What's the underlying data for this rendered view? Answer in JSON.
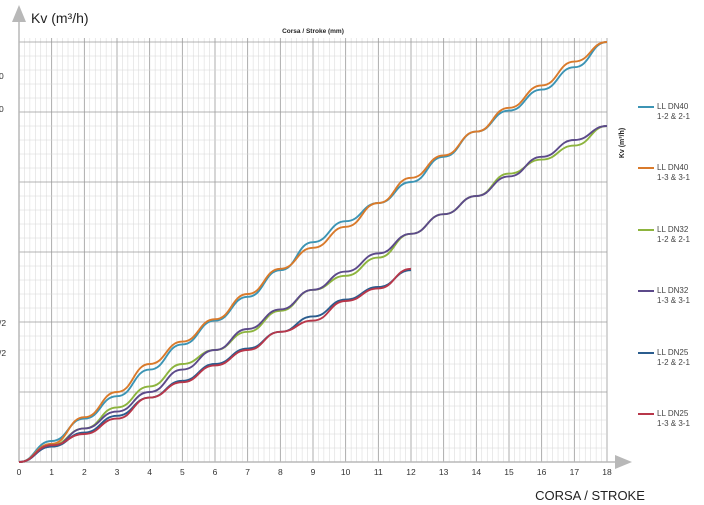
{
  "chart_data": {
    "type": "line",
    "title": "Corsa / Stroke (mm)",
    "xlabel": "CORSA / STROKE",
    "ylabel": "Kv (m³/h)",
    "right_ylabel": "Kv (m³/h)",
    "xlim": [
      0,
      18
    ],
    "ylim": [
      0,
      30
    ],
    "x_ticks": [
      0,
      1,
      2,
      3,
      4,
      5,
      6,
      7,
      8,
      9,
      10,
      11,
      12,
      13,
      14,
      15,
      16,
      17,
      18
    ],
    "y_left_fragments": [
      "0",
      "0",
      "/2",
      "/2"
    ],
    "grid": true,
    "legend_position": "right",
    "series": [
      {
        "name": "LL DN40\n1-2 & 2-1",
        "color": "#3c94b4",
        "x": [
          0,
          1,
          2,
          3,
          4,
          5,
          6,
          7,
          8,
          9,
          10,
          11,
          12,
          13,
          14,
          15,
          16,
          17,
          18
        ],
        "y": [
          0,
          1.5,
          3.1,
          4.7,
          6.6,
          8.4,
          10.1,
          11.8,
          13.7,
          15.7,
          17.2,
          18.5,
          20.0,
          21.8,
          23.6,
          25.1,
          26.6,
          28.2,
          30.0
        ]
      },
      {
        "name": "LL DN40\n1-3 & 3-1",
        "color": "#d97a2b",
        "x": [
          0,
          1,
          2,
          3,
          4,
          5,
          6,
          7,
          8,
          9,
          10,
          11,
          12,
          13,
          14,
          15,
          16,
          17,
          18
        ],
        "y": [
          0,
          1.3,
          3.2,
          5.0,
          7.0,
          8.6,
          10.2,
          12.0,
          13.8,
          15.3,
          16.8,
          18.5,
          20.3,
          21.9,
          23.6,
          25.3,
          26.9,
          28.6,
          30.0
        ]
      },
      {
        "name": "LL DN32\n1-2 & 2-1",
        "color": "#8db43e",
        "x": [
          0,
          1,
          2,
          3,
          4,
          5,
          6,
          7,
          8,
          9,
          10,
          11,
          12,
          13,
          14,
          15,
          16,
          17,
          18
        ],
        "y": [
          0,
          1.2,
          2.4,
          3.9,
          5.4,
          7.0,
          8.0,
          9.3,
          10.8,
          12.3,
          13.3,
          14.6,
          16.3,
          17.7,
          19.0,
          20.6,
          21.6,
          22.6,
          24.0
        ]
      },
      {
        "name": "LL DN32\n1-3 & 3-1",
        "color": "#5c4a8a",
        "x": [
          0,
          1,
          2,
          3,
          4,
          5,
          6,
          7,
          8,
          9,
          10,
          11,
          12,
          13,
          14,
          15,
          16,
          17,
          18
        ],
        "y": [
          0,
          1.1,
          2.4,
          3.6,
          5.0,
          6.6,
          8.0,
          9.5,
          10.9,
          12.3,
          13.6,
          14.9,
          16.3,
          17.7,
          19.0,
          20.4,
          21.8,
          23.0,
          24.0
        ]
      },
      {
        "name": "LL DN25\n1-2 & 2-1",
        "color": "#2b5d8e",
        "x": [
          0,
          1,
          2,
          3,
          4,
          5,
          6,
          7,
          8,
          9,
          10,
          11,
          12
        ],
        "y": [
          0,
          1.1,
          2.1,
          3.3,
          4.6,
          5.8,
          7.0,
          8.1,
          9.3,
          10.4,
          11.6,
          12.5,
          13.7
        ]
      },
      {
        "name": "LL DN25\n1-3 & 3-1",
        "color": "#b8374a",
        "x": [
          0,
          1,
          2,
          3,
          4,
          5,
          6,
          7,
          8,
          9,
          10,
          11,
          12
        ],
        "y": [
          0,
          1.2,
          2.0,
          3.1,
          4.6,
          5.7,
          6.9,
          8.0,
          9.3,
          10.1,
          11.5,
          12.4,
          13.8
        ]
      }
    ]
  }
}
